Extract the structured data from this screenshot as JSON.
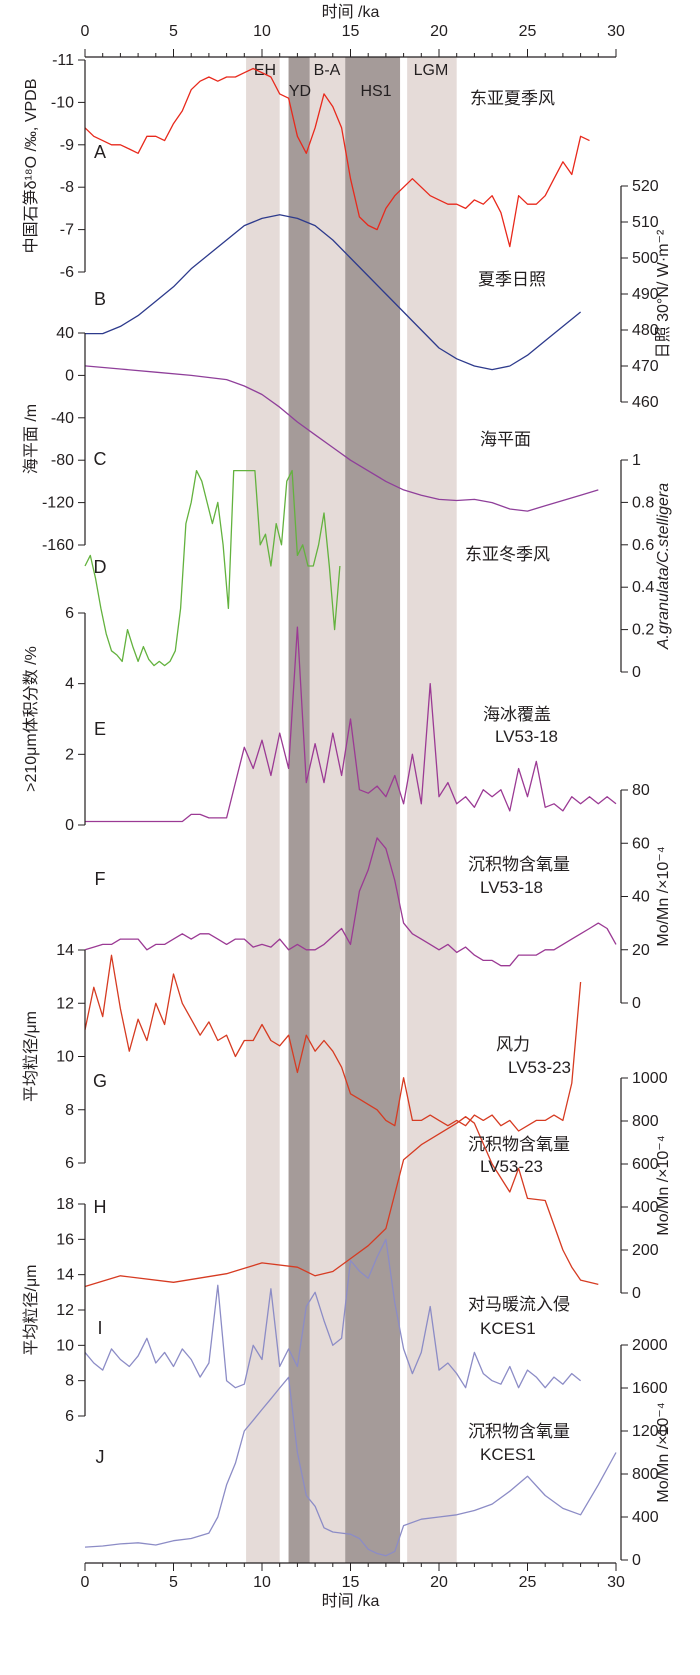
{
  "chart_data": {
    "type": "line",
    "x_axis": {
      "label": "时间 /ka",
      "range": [
        0,
        30
      ],
      "ticks": [
        "0",
        "5",
        "10",
        "15",
        "20",
        "25",
        "30"
      ]
    },
    "bands": [
      {
        "label": "EH",
        "x0": 9.1,
        "x1": 11.0,
        "color": "#e5dbd8"
      },
      {
        "label": "YD",
        "x0": 11.5,
        "x1": 12.7,
        "color": "#a59b99"
      },
      {
        "label": "B-A",
        "x0": 12.7,
        "x1": 14.7,
        "color": "#e5dbd8"
      },
      {
        "label": "HS1",
        "x0": 14.7,
        "x1": 17.8,
        "color": "#a59b99"
      },
      {
        "label": "LGM",
        "x0": 18.2,
        "x1": 21.0,
        "color": "#e5dbd8"
      }
    ],
    "panels": [
      {
        "id": "A",
        "label": "东亚夏季风",
        "color": "#e8291c",
        "axis_side": "left",
        "ylabel": "中国石笋δ¹⁸O /‰, VPDB",
        "yrange": [
          -11,
          -6
        ],
        "yticks": [
          "-11",
          "-10",
          "-9",
          "-8",
          "-7",
          "-6"
        ],
        "inverted": true,
        "x": [
          0,
          0.5,
          1,
          1.5,
          2,
          2.5,
          3,
          3.5,
          4,
          4.5,
          5,
          5.5,
          6,
          6.5,
          7,
          7.5,
          8,
          8.5,
          9,
          9.5,
          10,
          10.5,
          11,
          11.5,
          12,
          12.5,
          13,
          13.5,
          14,
          14.5,
          15,
          15.5,
          16,
          16.5,
          17,
          17.5,
          18,
          18.5,
          19,
          19.5,
          20,
          20.5,
          21,
          21.5,
          22,
          22.5,
          23,
          23.5,
          24,
          24.5,
          25,
          25.5,
          26,
          26.5,
          27,
          27.5,
          28,
          28.5
        ],
        "y": [
          -9.4,
          -9.2,
          -9.1,
          -9.0,
          -9.0,
          -8.9,
          -8.8,
          -9.2,
          -9.2,
          -9.1,
          -9.5,
          -9.8,
          -10.3,
          -10.5,
          -10.6,
          -10.5,
          -10.6,
          -10.6,
          -10.7,
          -10.8,
          -10.7,
          -10.6,
          -10.2,
          -10.1,
          -9.2,
          -8.8,
          -9.4,
          -10.2,
          -9.9,
          -9.4,
          -8.2,
          -7.3,
          -7.1,
          -7.0,
          -7.5,
          -7.8,
          -8.0,
          -8.2,
          -8.0,
          -7.8,
          -7.7,
          -7.6,
          -7.6,
          -7.5,
          -7.7,
          -7.6,
          -7.8,
          -7.4,
          -6.6,
          -7.8,
          -7.6,
          -7.6,
          -7.8,
          -8.2,
          -8.6,
          -8.3,
          -9.2,
          -9.1
        ]
      },
      {
        "id": "B",
        "label": "夏季日照",
        "color": "#2d3a8c",
        "axis_side": "right",
        "ylabel": "日照 30°N/ W·m⁻²",
        "yrange": [
          460,
          520
        ],
        "yticks": [
          "460",
          "470",
          "480",
          "490",
          "500",
          "510",
          "520"
        ],
        "x": [
          0,
          1,
          2,
          3,
          4,
          5,
          6,
          7,
          8,
          9,
          10,
          11,
          12,
          13,
          14,
          15,
          16,
          17,
          18,
          19,
          20,
          21,
          22,
          23,
          24,
          25,
          26,
          27,
          28
        ],
        "y": [
          479,
          479,
          481,
          484,
          488,
          492,
          497,
          501,
          505,
          509,
          511,
          512,
          511,
          509,
          505,
          500,
          495,
          490,
          485,
          480,
          475,
          472,
          470,
          469,
          470,
          473,
          477,
          481,
          485
        ]
      },
      {
        "id": "C",
        "label": "海平面",
        "color": "#8f3f9a",
        "axis_side": "left",
        "ylabel": "海平面 /m",
        "yrange": [
          -160,
          40
        ],
        "yticks": [
          "40",
          "0",
          "-40",
          "-80",
          "-120",
          "-160"
        ],
        "x": [
          0,
          2,
          4,
          6,
          8,
          9,
          10,
          11,
          12,
          13,
          14,
          15,
          16,
          17,
          18,
          19,
          20,
          21,
          22,
          23,
          24,
          25,
          26,
          27,
          28,
          29
        ],
        "y": [
          9,
          6,
          3,
          0,
          -4,
          -10,
          -18,
          -30,
          -44,
          -56,
          -68,
          -80,
          -90,
          -100,
          -108,
          -113,
          -117,
          -118,
          -117,
          -120,
          -126,
          -128,
          -123,
          -118,
          -113,
          -108
        ]
      },
      {
        "id": "D",
        "label": "东亚冬季风",
        "color": "#63b23e",
        "axis_side": "right",
        "ylabel": "A.granulata/C.stelligera",
        "yrange": [
          0,
          1
        ],
        "yticks": [
          "0",
          "0.2",
          "0.4",
          "0.6",
          "0.8",
          "1"
        ],
        "x": [
          0,
          0.3,
          0.6,
          0.9,
          1.2,
          1.5,
          1.8,
          2.1,
          2.4,
          2.7,
          3.0,
          3.3,
          3.6,
          3.9,
          4.2,
          4.5,
          4.8,
          5.1,
          5.4,
          5.7,
          6.0,
          6.3,
          6.6,
          6.9,
          7.2,
          7.5,
          7.8,
          8.1,
          8.4,
          8.7,
          9.0,
          9.3,
          9.6,
          9.9,
          10.2,
          10.5,
          10.8,
          11.1,
          11.4,
          11.7,
          12.0,
          12.3,
          12.6,
          12.9,
          13.2,
          13.5,
          13.8,
          14.1,
          14.4
        ],
        "y": [
          0.5,
          0.55,
          0.44,
          0.3,
          0.18,
          0.1,
          0.08,
          0.05,
          0.2,
          0.12,
          0.05,
          0.12,
          0.06,
          0.03,
          0.05,
          0.03,
          0.05,
          0.1,
          0.3,
          0.7,
          0.8,
          0.95,
          0.9,
          0.8,
          0.7,
          0.8,
          0.6,
          0.3,
          0.95,
          0.95,
          0.95,
          0.95,
          0.95,
          0.6,
          0.65,
          0.5,
          0.7,
          0.6,
          0.9,
          0.95,
          0.55,
          0.6,
          0.5,
          0.5,
          0.6,
          0.75,
          0.5,
          0.2,
          0.5
        ]
      },
      {
        "id": "E",
        "label": "海冰覆盖",
        "label2": "LV53-18",
        "color": "#9b3a94",
        "axis_side": "left",
        "ylabel": ">210μm体积分数 /%",
        "yrange": [
          0,
          6
        ],
        "yticks": [
          "0",
          "2",
          "4",
          "6"
        ],
        "x": [
          0,
          0.5,
          1,
          1.5,
          2,
          2.5,
          3,
          3.5,
          4,
          4.5,
          5,
          5.5,
          6,
          6.5,
          7,
          7.5,
          8,
          8.5,
          9,
          9.5,
          10,
          10.5,
          11,
          11.5,
          12,
          12.5,
          13,
          13.5,
          14,
          14.5,
          15,
          15.5,
          16,
          16.5,
          17,
          17.5,
          18,
          18.5,
          19,
          19.5,
          20,
          20.5,
          21,
          21.5,
          22,
          22.5,
          23,
          23.5,
          24,
          24.5,
          25,
          25.5,
          26,
          26.5,
          27,
          27.5,
          28,
          28.5,
          29,
          29.5,
          30
        ],
        "y": [
          0.1,
          0.1,
          0.1,
          0.1,
          0.1,
          0.1,
          0.1,
          0.1,
          0.1,
          0.1,
          0.1,
          0.1,
          0.3,
          0.3,
          0.2,
          0.2,
          0.2,
          1.2,
          2.2,
          1.6,
          2.4,
          1.4,
          2.6,
          1.6,
          5.6,
          1.2,
          2.3,
          1.2,
          2.6,
          1.4,
          3.0,
          1.0,
          0.9,
          1.1,
          0.8,
          1.4,
          0.6,
          2.0,
          0.6,
          4.0,
          0.8,
          1.2,
          0.6,
          0.8,
          0.5,
          1.0,
          0.8,
          1.0,
          0.4,
          1.6,
          0.8,
          1.8,
          0.5,
          0.6,
          0.4,
          0.8,
          0.6,
          0.8,
          0.6,
          0.8,
          0.6
        ]
      },
      {
        "id": "F",
        "label": "沉积物含氧量",
        "label2": "LV53-18",
        "color": "#9b3a94",
        "axis_side": "right",
        "ylabel": "Mo/Mn /×10⁻⁴",
        "yrange": [
          0,
          80
        ],
        "yticks": [
          "0",
          "20",
          "40",
          "60",
          "80"
        ],
        "x": [
          0,
          0.5,
          1,
          1.5,
          2,
          2.5,
          3,
          3.5,
          4,
          4.5,
          5,
          5.5,
          6,
          6.5,
          7,
          7.5,
          8,
          8.5,
          9,
          9.5,
          10,
          10.5,
          11,
          11.5,
          12,
          12.5,
          13,
          13.5,
          14,
          14.5,
          15,
          15.5,
          16,
          16.5,
          17,
          17.5,
          18,
          18.5,
          19,
          19.5,
          20,
          20.5,
          21,
          21.5,
          22,
          22.5,
          23,
          23.5,
          24,
          24.5,
          25,
          25.5,
          26,
          26.5,
          27,
          27.5,
          28,
          28.5,
          29,
          29.5,
          30
        ],
        "y": [
          20,
          21,
          22,
          22,
          24,
          24,
          24,
          20,
          22,
          22,
          24,
          26,
          24,
          26,
          26,
          24,
          22,
          24,
          24,
          21,
          22,
          21,
          24,
          20,
          22,
          20,
          20,
          22,
          25,
          28,
          22,
          42,
          50,
          62,
          58,
          46,
          30,
          26,
          24,
          22,
          20,
          22,
          19,
          21,
          18,
          16,
          16,
          14,
          14,
          18,
          18,
          18,
          20,
          20,
          22,
          24,
          26,
          28,
          30,
          28,
          22
        ]
      },
      {
        "id": "G",
        "label": "风力",
        "label2": "LV53-23",
        "color": "#d63b22",
        "axis_side": "left",
        "ylabel": "平均粒径/μm",
        "yrange": [
          6,
          14
        ],
        "yticks": [
          "6",
          "8",
          "10",
          "12",
          "14"
        ],
        "x": [
          0,
          0.5,
          1,
          1.5,
          2,
          2.5,
          3,
          3.5,
          4,
          4.5,
          5,
          5.5,
          6,
          6.5,
          7,
          7.5,
          8,
          8.5,
          9,
          9.5,
          10,
          10.5,
          11,
          11.5,
          12,
          12.5,
          13,
          13.5,
          14,
          14.5,
          15,
          15.5,
          16,
          16.5,
          17,
          17.5,
          18,
          18.5,
          19,
          19.5,
          20,
          20.5,
          21,
          21.5,
          22,
          22.5,
          23,
          23.5,
          24,
          24.5,
          25,
          25.5,
          26,
          26.5,
          27,
          27.5,
          28
        ],
        "y": [
          11.0,
          12.6,
          11.5,
          13.8,
          11.8,
          10.2,
          11.4,
          10.6,
          12.0,
          11.2,
          13.1,
          12.0,
          11.4,
          10.8,
          11.3,
          10.6,
          10.8,
          10.0,
          10.6,
          10.6,
          11.2,
          10.6,
          10.4,
          10.8,
          9.4,
          10.8,
          10.2,
          10.6,
          10.2,
          9.6,
          8.6,
          8.4,
          8.2,
          8.0,
          7.6,
          7.4,
          9.2,
          7.6,
          7.6,
          7.8,
          7.6,
          7.4,
          7.6,
          7.4,
          7.8,
          7.6,
          7.8,
          7.4,
          7.6,
          7.2,
          7.4,
          7.6,
          7.6,
          7.8,
          7.6,
          9.0,
          12.8
        ]
      },
      {
        "id": "H",
        "label": "沉积物含氧量",
        "label2": "LV53-23",
        "color": "#d63b22",
        "axis_side": "right",
        "ylabel": "Mo/Mn /×10⁻⁴",
        "yrange": [
          0,
          1000
        ],
        "yticks": [
          "0",
          "200",
          "400",
          "600",
          "800",
          "1000"
        ],
        "x": [
          0,
          2,
          5,
          8,
          10,
          12,
          13,
          14,
          15,
          16,
          17,
          18,
          19,
          20,
          21,
          21.5,
          22,
          23,
          24,
          24.5,
          25,
          26,
          27,
          27.5,
          28,
          29
        ],
        "y": [
          30,
          80,
          50,
          90,
          140,
          120,
          80,
          100,
          160,
          220,
          300,
          620,
          690,
          740,
          790,
          820,
          790,
          600,
          470,
          580,
          440,
          430,
          200,
          120,
          60,
          40
        ]
      },
      {
        "id": "I",
        "label": "对马暖流入侵",
        "label2": "KCES1",
        "color": "#8c8cc6",
        "axis_side": "left",
        "ylabel": "平均粒径/μm",
        "yrange": [
          6,
          18
        ],
        "yticks": [
          "6",
          "8",
          "10",
          "12",
          "14",
          "16",
          "18"
        ],
        "x": [
          0,
          0.5,
          1,
          1.5,
          2,
          2.5,
          3,
          3.5,
          4,
          4.5,
          5,
          5.5,
          6,
          6.5,
          7,
          7.5,
          8,
          8.5,
          9,
          9.5,
          10,
          10.5,
          11,
          11.5,
          12,
          12.5,
          13,
          13.5,
          14,
          14.5,
          15,
          15.5,
          16,
          16.5,
          17,
          17.5,
          18,
          18.5,
          19,
          19.5,
          20,
          20.5,
          21,
          21.5,
          22,
          22.5,
          23,
          23.5,
          24,
          24.5,
          25,
          25.5,
          26,
          26.5,
          27,
          27.5,
          28
        ],
        "y": [
          9.6,
          9.0,
          8.6,
          9.8,
          9.2,
          8.8,
          9.4,
          10.4,
          9.0,
          9.6,
          8.8,
          9.8,
          9.2,
          8.2,
          9.0,
          13.4,
          8.0,
          7.6,
          7.8,
          10.0,
          9.2,
          13.2,
          8.8,
          9.8,
          8.8,
          12.2,
          13.0,
          11.4,
          10.0,
          10.4,
          14.8,
          14.2,
          13.8,
          15.0,
          16.0,
          12.4,
          9.8,
          8.4,
          9.6,
          12.2,
          8.6,
          9.0,
          8.4,
          7.6,
          9.6,
          8.4,
          8.0,
          7.8,
          8.8,
          7.6,
          8.6,
          8.2,
          7.6,
          8.2,
          7.8,
          8.4,
          8.0
        ]
      },
      {
        "id": "J",
        "label": "沉积物含氧量",
        "label2": "KCES1",
        "color": "#8c8cc6",
        "axis_side": "right",
        "ylabel": "Mo/Mn /×10⁻⁴",
        "yrange": [
          0,
          2000
        ],
        "yticks": [
          "0",
          "400",
          "800",
          "1200",
          "1600",
          "2000"
        ],
        "x": [
          0,
          1,
          2,
          3,
          4,
          5,
          6,
          7,
          7.5,
          8,
          8.5,
          9,
          9.5,
          10,
          10.5,
          11,
          11.5,
          12,
          12.5,
          13,
          13.5,
          14,
          14.5,
          15,
          15.5,
          16,
          16.5,
          17,
          17.5,
          18,
          19,
          20,
          21,
          22,
          23,
          24,
          25,
          26,
          27,
          28,
          29,
          30
        ],
        "y": [
          120,
          130,
          150,
          160,
          140,
          180,
          200,
          250,
          400,
          700,
          900,
          1200,
          1300,
          1400,
          1500,
          1600,
          1700,
          1000,
          600,
          500,
          300,
          260,
          250,
          240,
          200,
          100,
          60,
          40,
          80,
          320,
          380,
          400,
          420,
          460,
          520,
          640,
          780,
          600,
          480,
          420,
          700,
          1000
        ]
      }
    ],
    "letters": [
      "A",
      "B",
      "C",
      "D",
      "E",
      "F",
      "G",
      "H",
      "I",
      "J"
    ]
  }
}
